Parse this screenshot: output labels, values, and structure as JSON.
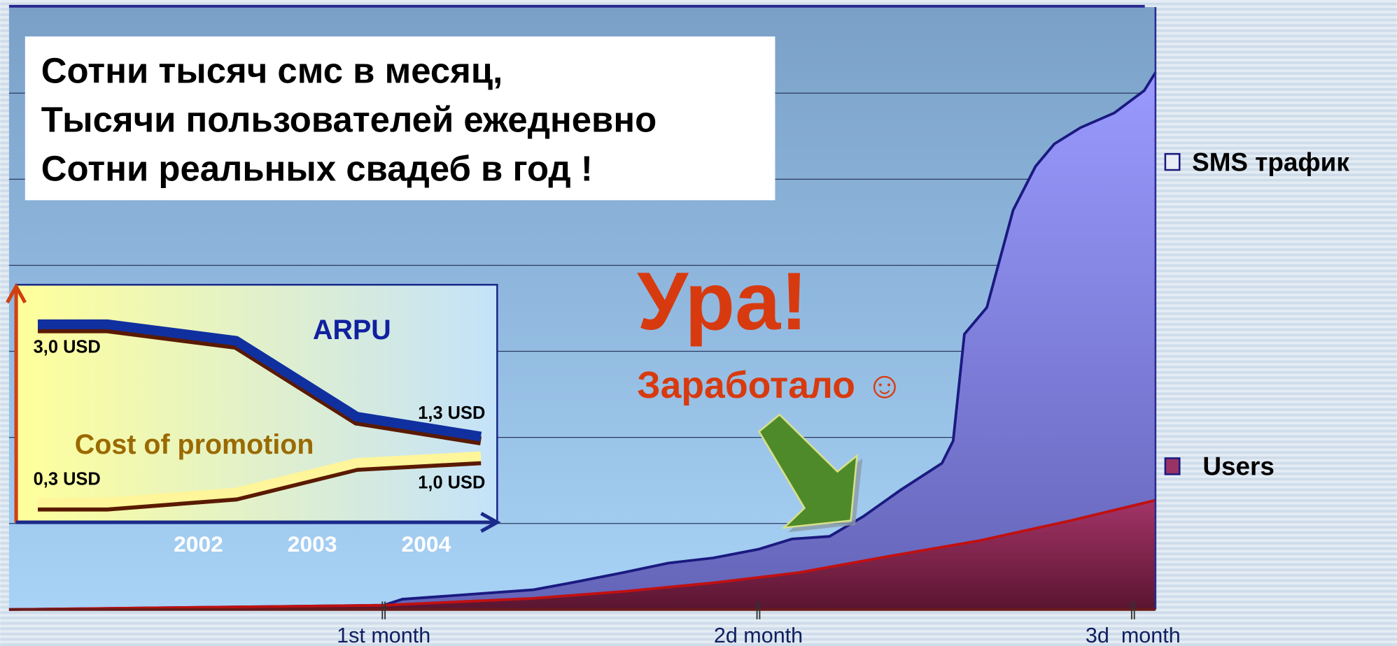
{
  "chart_data": [
    {
      "type": "area",
      "annotations": [
        "Сотни тысяч смс в месяц,",
        "Тысячи пользователей ежедневно",
        "Сотни реальных свадеб в год !",
        "Ура!",
        "Заработало ☺"
      ],
      "xlim": [
        0,
        3.06
      ],
      "xticks": [
        {
          "value": 1,
          "label": "1st month"
        },
        {
          "value": 2,
          "label": "2d month"
        },
        {
          "value": 3,
          "label": "3d  month"
        }
      ],
      "ylim": [
        0,
        7
      ],
      "yticks": [
        1,
        2,
        3,
        4,
        5,
        6
      ],
      "grid": true,
      "legend": "right",
      "series": [
        {
          "name": "SMS трафик",
          "color": "#8f8ff0",
          "x": [
            0,
            1.0,
            1.05,
            1.4,
            1.5,
            1.64,
            1.76,
            1.88,
            2.0,
            2.09,
            2.19,
            2.28,
            2.38,
            2.49,
            2.52,
            2.55,
            2.61,
            2.68,
            2.74,
            2.79,
            2.86,
            2.95,
            3.03,
            3.06
          ],
          "values": [
            0,
            0.05,
            0.12,
            0.23,
            0.31,
            0.43,
            0.54,
            0.6,
            0.7,
            0.82,
            0.85,
            1.08,
            1.39,
            1.7,
            1.96,
            3.2,
            3.51,
            4.64,
            5.15,
            5.41,
            5.6,
            5.77,
            6.03,
            6.24
          ]
        },
        {
          "name": "Users",
          "color": "#993366",
          "x": [
            0,
            1.0,
            1.4,
            1.64,
            1.88,
            2.11,
            2.35,
            2.59,
            2.83,
            3.06
          ],
          "values": [
            0,
            0.05,
            0.13,
            0.21,
            0.31,
            0.43,
            0.62,
            0.8,
            1.03,
            1.27
          ]
        }
      ]
    },
    {
      "type": "line",
      "xlim": [
        2000.4,
        2004.6
      ],
      "xticks": [
        2002,
        2003,
        2004
      ],
      "ylim": [
        0,
        3.6
      ],
      "series": [
        {
          "name": "ARPU",
          "color": "#1030a0",
          "x": [
            2000.59,
            2001.2,
            2002.33,
            2003.39,
            2004.48
          ],
          "values": [
            3.0,
            3.0,
            2.75,
            1.6,
            1.3
          ],
          "value_labels": [
            "3,0 USD",
            null,
            null,
            null,
            "1,3 USD"
          ]
        },
        {
          "name": "Cost of promotion",
          "color": "#fff59a",
          "x": [
            2000.59,
            2001.2,
            2002.33,
            2003.39,
            2004.48
          ],
          "values": [
            0.3,
            0.3,
            0.45,
            0.9,
            1.0
          ],
          "value_labels": [
            "0,3 USD",
            null,
            null,
            null,
            "1,0 USD"
          ]
        }
      ]
    }
  ]
}
